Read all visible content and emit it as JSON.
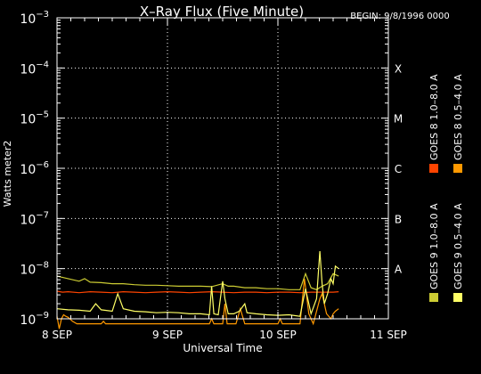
{
  "chart_data": {
    "type": "line",
    "title": "X–Ray Flux (Five Minute)",
    "begin_label": "BEGIN: 9/8/1996 0000",
    "ylabel": "Watts meter2",
    "xlabel": "Universal Time",
    "x_ticks": [
      {
        "day": 0,
        "label": "8 SEP"
      },
      {
        "day": 1,
        "label": "9 SEP"
      },
      {
        "day": 2,
        "label": "10 SEP"
      },
      {
        "day": 3,
        "label": "11 SEP"
      }
    ],
    "xlim": [
      0,
      3
    ],
    "y_scale": "log",
    "ylim": [
      -9,
      -3
    ],
    "y_ticks": [
      {
        "exp": -9,
        "base": "10",
        "sup": "−9"
      },
      {
        "exp": -8,
        "base": "10",
        "sup": "−8"
      },
      {
        "exp": -7,
        "base": "10",
        "sup": "−7"
      },
      {
        "exp": -6,
        "base": "10",
        "sup": "−6"
      },
      {
        "exp": -5,
        "base": "10",
        "sup": "−5"
      },
      {
        "exp": -4,
        "base": "10",
        "sup": "−4"
      },
      {
        "exp": -3,
        "base": "10",
        "sup": "−3"
      }
    ],
    "flare_classes": [
      {
        "label": "A",
        "exp": -8
      },
      {
        "label": "B",
        "exp": -7
      },
      {
        "label": "C",
        "exp": -6
      },
      {
        "label": "M",
        "exp": -5
      },
      {
        "label": "X",
        "exp": -4
      }
    ],
    "grid": {
      "vertical_days": [
        1,
        2
      ],
      "horizontal_exps": [
        -8,
        -7,
        -6,
        -5,
        -4
      ],
      "style": "dotted"
    },
    "legend_position": "right, vertical",
    "series": [
      {
        "name": "GOES 8  1.0–8.0 A",
        "color": "#ff4400",
        "points": [
          [
            0,
            -8.45
          ],
          [
            0.05,
            -8.47
          ],
          [
            0.1,
            -8.46
          ],
          [
            0.2,
            -8.48
          ],
          [
            0.3,
            -8.46
          ],
          [
            0.4,
            -8.47
          ],
          [
            0.5,
            -8.48
          ],
          [
            0.6,
            -8.46
          ],
          [
            0.7,
            -8.47
          ],
          [
            0.8,
            -8.48
          ],
          [
            0.9,
            -8.47
          ],
          [
            1.0,
            -8.46
          ],
          [
            1.1,
            -8.47
          ],
          [
            1.2,
            -8.48
          ],
          [
            1.3,
            -8.47
          ],
          [
            1.4,
            -8.46
          ],
          [
            1.5,
            -8.47
          ],
          [
            1.6,
            -8.48
          ],
          [
            1.7,
            -8.47
          ],
          [
            1.8,
            -8.47
          ],
          [
            1.9,
            -8.48
          ],
          [
            2.0,
            -8.47
          ],
          [
            2.1,
            -8.47
          ],
          [
            2.2,
            -8.48
          ],
          [
            2.3,
            -8.47
          ],
          [
            2.4,
            -8.47
          ],
          [
            2.5,
            -8.47
          ],
          [
            2.55,
            -8.46
          ]
        ]
      },
      {
        "name": "GOES 8  0.5–4.0 A",
        "color": "#ff9900",
        "points": [
          [
            0,
            -8.95
          ],
          [
            0.02,
            -9.2
          ],
          [
            0.04,
            -9.0
          ],
          [
            0.06,
            -8.92
          ],
          [
            0.08,
            -8.95
          ],
          [
            0.1,
            -8.97
          ],
          [
            0.14,
            -9.05
          ],
          [
            0.18,
            -9.1
          ],
          [
            0.4,
            -9.1
          ],
          [
            0.42,
            -9.05
          ],
          [
            0.44,
            -9.1
          ],
          [
            0.8,
            -9.1
          ],
          [
            1.0,
            -9.1
          ],
          [
            1.38,
            -9.1
          ],
          [
            1.4,
            -9.0
          ],
          [
            1.42,
            -9.1
          ],
          [
            1.5,
            -9.1
          ],
          [
            1.52,
            -8.7
          ],
          [
            1.54,
            -9.1
          ],
          [
            1.62,
            -9.1
          ],
          [
            1.66,
            -8.8
          ],
          [
            1.7,
            -9.1
          ],
          [
            2.0,
            -9.1
          ],
          [
            2.02,
            -9.0
          ],
          [
            2.04,
            -9.1
          ],
          [
            2.2,
            -9.1
          ],
          [
            2.24,
            -8.2
          ],
          [
            2.28,
            -8.9
          ],
          [
            2.32,
            -9.1
          ],
          [
            2.38,
            -8.6
          ],
          [
            2.4,
            -8.5
          ],
          [
            2.44,
            -8.9
          ],
          [
            2.48,
            -9.0
          ],
          [
            2.5,
            -8.9
          ],
          [
            2.52,
            -8.85
          ],
          [
            2.55,
            -8.8
          ]
        ]
      },
      {
        "name": "GOES 9  1.0–8.0 A",
        "color": "#cccc33",
        "points": [
          [
            0,
            -8.15
          ],
          [
            0.1,
            -8.2
          ],
          [
            0.2,
            -8.25
          ],
          [
            0.25,
            -8.2
          ],
          [
            0.3,
            -8.27
          ],
          [
            0.4,
            -8.28
          ],
          [
            0.5,
            -8.3
          ],
          [
            0.6,
            -8.3
          ],
          [
            0.7,
            -8.32
          ],
          [
            0.8,
            -8.33
          ],
          [
            0.9,
            -8.33
          ],
          [
            1.0,
            -8.34
          ],
          [
            1.1,
            -8.35
          ],
          [
            1.2,
            -8.35
          ],
          [
            1.3,
            -8.35
          ],
          [
            1.4,
            -8.36
          ],
          [
            1.5,
            -8.3
          ],
          [
            1.55,
            -8.35
          ],
          [
            1.6,
            -8.35
          ],
          [
            1.7,
            -8.38
          ],
          [
            1.8,
            -8.38
          ],
          [
            1.9,
            -8.4
          ],
          [
            2.0,
            -8.4
          ],
          [
            2.1,
            -8.42
          ],
          [
            2.2,
            -8.42
          ],
          [
            2.25,
            -8.1
          ],
          [
            2.3,
            -8.38
          ],
          [
            2.35,
            -8.42
          ],
          [
            2.4,
            -8.35
          ],
          [
            2.45,
            -8.3
          ],
          [
            2.5,
            -8.1
          ],
          [
            2.55,
            -8.15
          ]
        ]
      },
      {
        "name": "GOES 9  0.5–4.0 A",
        "color": "#ffff66",
        "points": [
          [
            0,
            -8.8
          ],
          [
            0.1,
            -8.82
          ],
          [
            0.2,
            -8.83
          ],
          [
            0.3,
            -8.85
          ],
          [
            0.35,
            -8.7
          ],
          [
            0.4,
            -8.82
          ],
          [
            0.5,
            -8.85
          ],
          [
            0.55,
            -8.5
          ],
          [
            0.6,
            -8.8
          ],
          [
            0.7,
            -8.85
          ],
          [
            0.8,
            -8.86
          ],
          [
            0.9,
            -8.88
          ],
          [
            1.0,
            -8.87
          ],
          [
            1.1,
            -8.88
          ],
          [
            1.2,
            -8.9
          ],
          [
            1.3,
            -8.9
          ],
          [
            1.38,
            -8.92
          ],
          [
            1.4,
            -8.35
          ],
          [
            1.42,
            -8.9
          ],
          [
            1.46,
            -8.92
          ],
          [
            1.5,
            -8.25
          ],
          [
            1.52,
            -8.6
          ],
          [
            1.55,
            -8.9
          ],
          [
            1.6,
            -8.9
          ],
          [
            1.65,
            -8.85
          ],
          [
            1.7,
            -8.7
          ],
          [
            1.72,
            -8.88
          ],
          [
            1.8,
            -8.9
          ],
          [
            1.9,
            -8.92
          ],
          [
            2.0,
            -8.93
          ],
          [
            2.1,
            -8.92
          ],
          [
            2.2,
            -8.95
          ],
          [
            2.25,
            -8.4
          ],
          [
            2.3,
            -8.9
          ],
          [
            2.35,
            -8.6
          ],
          [
            2.38,
            -7.65
          ],
          [
            2.4,
            -8.3
          ],
          [
            2.42,
            -8.7
          ],
          [
            2.45,
            -8.5
          ],
          [
            2.48,
            -8.2
          ],
          [
            2.5,
            -8.3
          ],
          [
            2.52,
            -7.95
          ],
          [
            2.55,
            -8.0
          ]
        ]
      }
    ]
  }
}
